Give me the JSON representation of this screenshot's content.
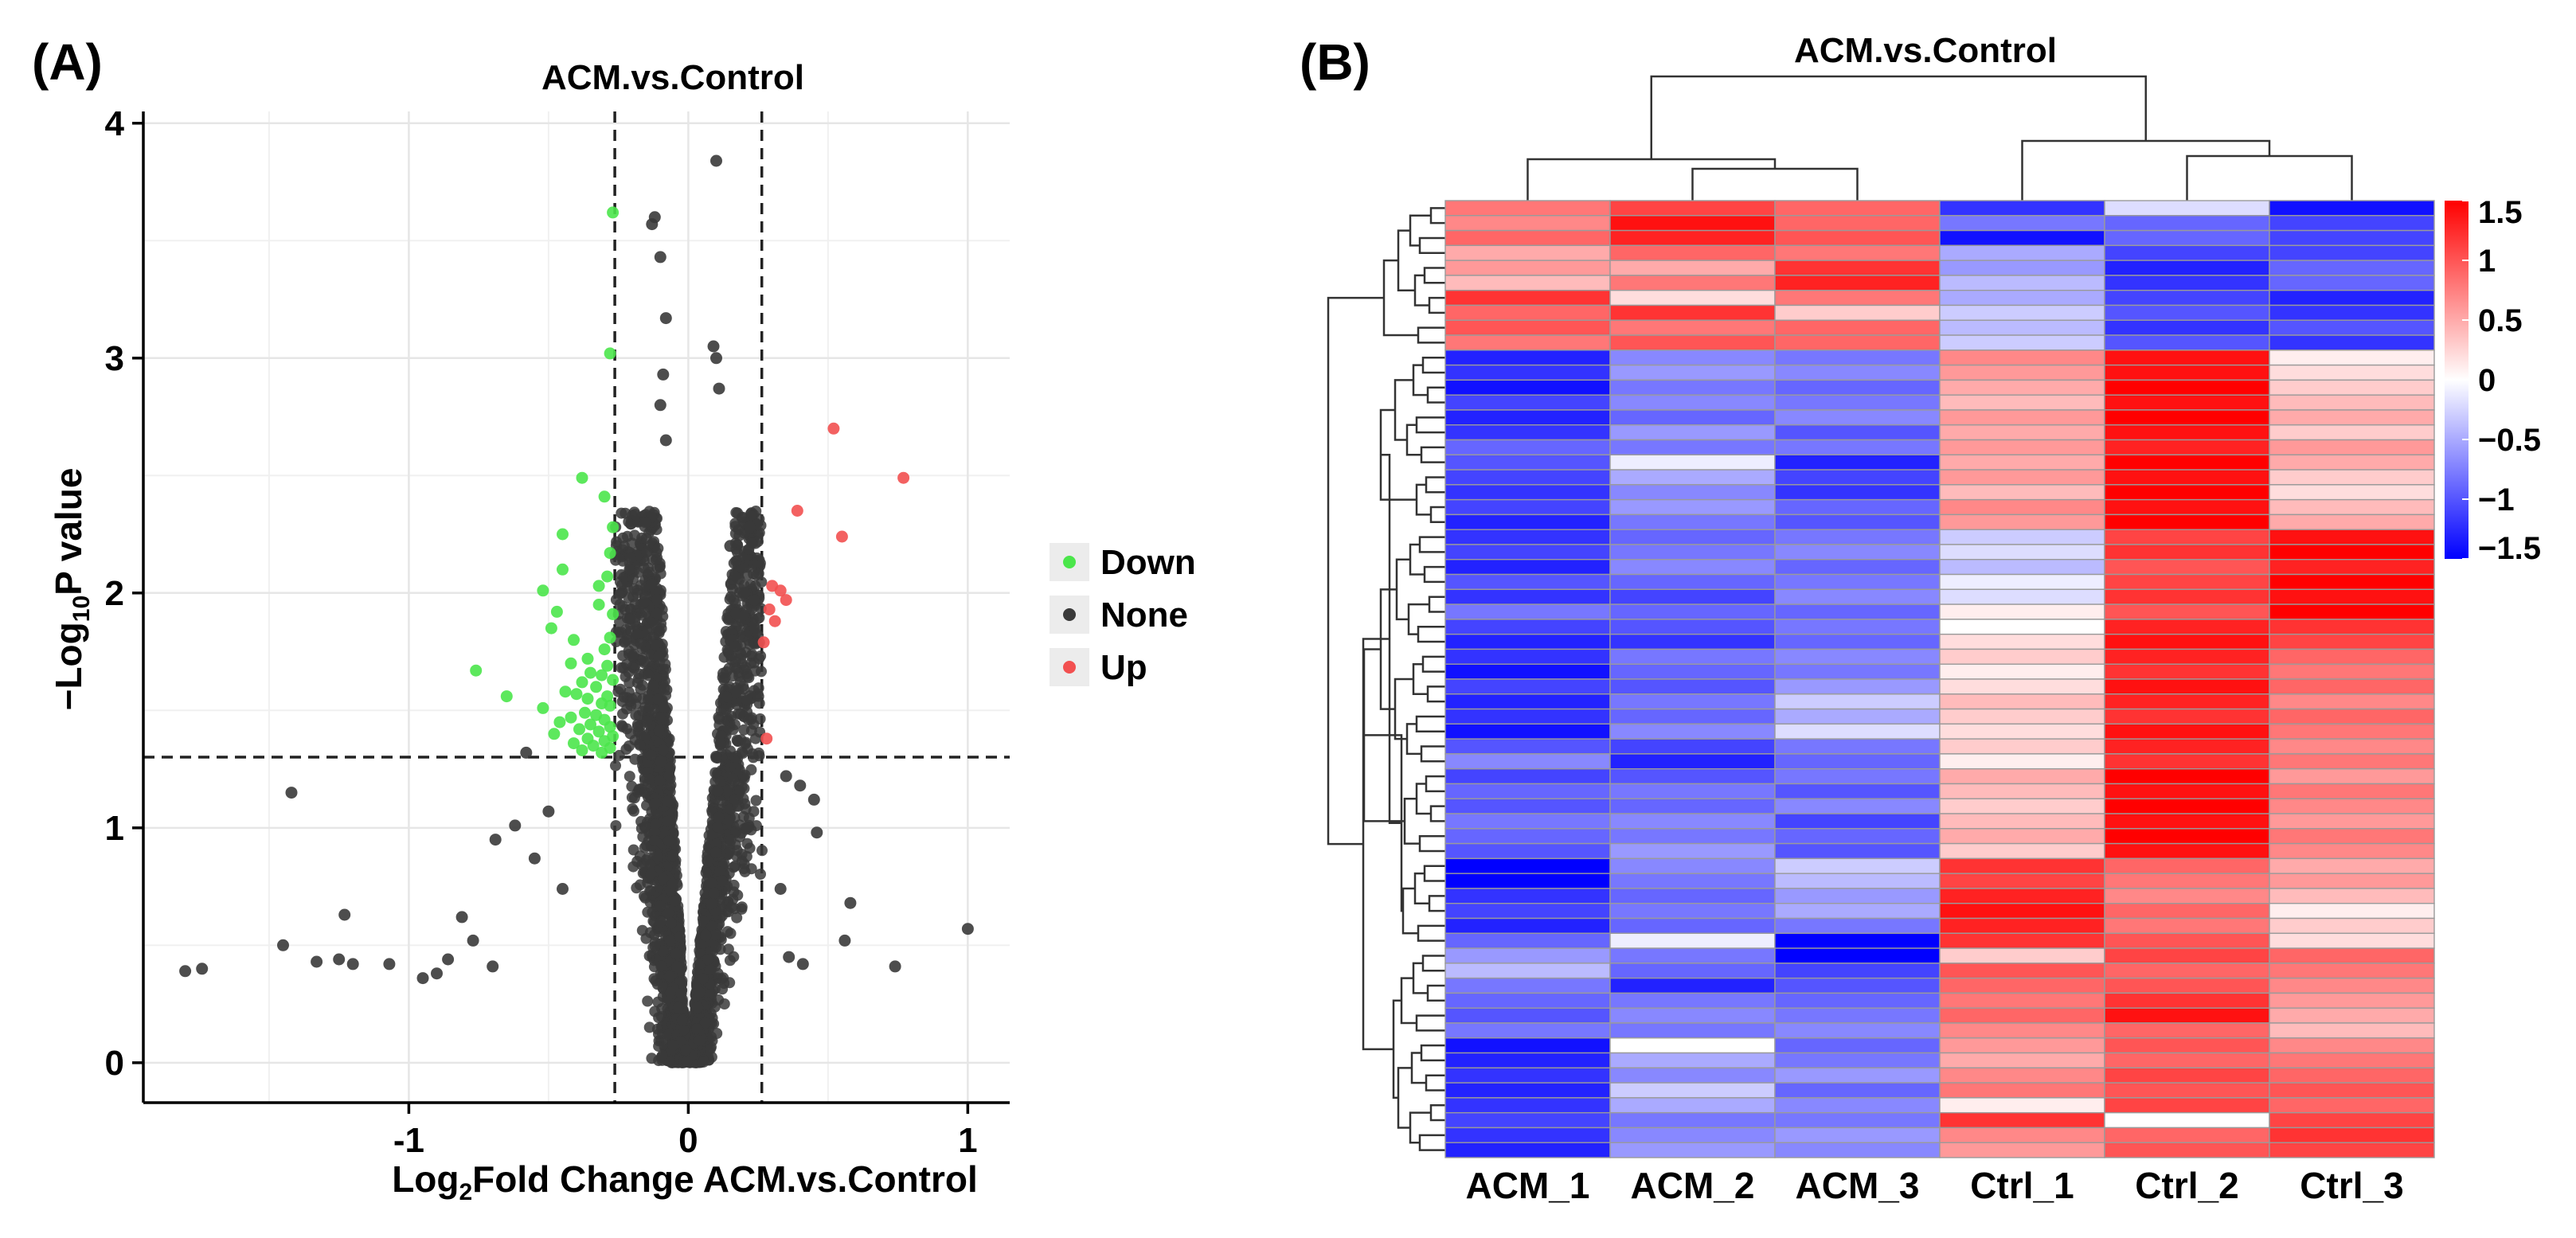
{
  "figure": {
    "panel_a_label": "(A)",
    "panel_b_label": "(B)"
  },
  "chart_data": [
    {
      "type": "scatter",
      "title": "ACM.vs.Control",
      "xlabel_prefix": "Log",
      "xlabel_sub": "2",
      "xlabel_rest": "Fold Change ACM.vs.Control",
      "ylabel_prefix": "−Log",
      "ylabel_sub": "10",
      "ylabel_rest": "P value",
      "xlim": [
        -1.95,
        1.15
      ],
      "ylim": [
        -0.17,
        4.05
      ],
      "xticks": [
        -1,
        0,
        1
      ],
      "xtick_labels": [
        "-1",
        "0",
        "1"
      ],
      "yticks": [
        0,
        1,
        2,
        3,
        4
      ],
      "ytick_labels": [
        "0",
        "1",
        "2",
        "3",
        "4"
      ],
      "threshold_lines": {
        "x": [
          -0.263,
          0.263
        ],
        "y": 1.301
      },
      "grid": true,
      "legend": {
        "position": "right",
        "items": [
          {
            "label": "Down",
            "color": "#4be64b"
          },
          {
            "label": "None",
            "color": "#3a3a3a"
          },
          {
            "label": "Up",
            "color": "#f25050"
          }
        ]
      },
      "series": [
        {
          "name": "Up",
          "color": "#f25050",
          "points": [
            [
              0.52,
              2.7
            ],
            [
              0.77,
              2.49
            ],
            [
              0.39,
              2.35
            ],
            [
              0.55,
              2.24
            ],
            [
              0.3,
              2.03
            ],
            [
              0.33,
              2.01
            ],
            [
              0.35,
              1.97
            ],
            [
              0.29,
              1.93
            ],
            [
              0.31,
              1.88
            ],
            [
              0.27,
              1.79
            ],
            [
              0.28,
              1.38
            ]
          ]
        },
        {
          "name": "Down",
          "color": "#4be64b",
          "points": [
            [
              -0.27,
              3.62
            ],
            [
              -0.28,
              3.02
            ],
            [
              -0.38,
              2.49
            ],
            [
              -0.3,
              2.41
            ],
            [
              -0.27,
              2.28
            ],
            [
              -0.45,
              2.25
            ],
            [
              -0.28,
              2.17
            ],
            [
              -0.45,
              2.1
            ],
            [
              -0.29,
              2.07
            ],
            [
              -0.32,
              2.03
            ],
            [
              -0.52,
              2.01
            ],
            [
              -0.32,
              1.95
            ],
            [
              -0.47,
              1.92
            ],
            [
              -0.27,
              1.91
            ],
            [
              -0.49,
              1.85
            ],
            [
              -0.28,
              1.81
            ],
            [
              -0.41,
              1.8
            ],
            [
              -0.3,
              1.76
            ],
            [
              -0.36,
              1.72
            ],
            [
              -0.42,
              1.7
            ],
            [
              -0.29,
              1.69
            ],
            [
              -0.76,
              1.67
            ],
            [
              -0.35,
              1.66
            ],
            [
              -0.31,
              1.65
            ],
            [
              -0.27,
              1.63
            ],
            [
              -0.38,
              1.62
            ],
            [
              -0.33,
              1.6
            ],
            [
              -0.44,
              1.58
            ],
            [
              -0.4,
              1.57
            ],
            [
              -0.29,
              1.56
            ],
            [
              -0.65,
              1.56
            ],
            [
              -0.36,
              1.55
            ],
            [
              -0.31,
              1.53
            ],
            [
              -0.28,
              1.52
            ],
            [
              -0.52,
              1.51
            ],
            [
              -0.37,
              1.49
            ],
            [
              -0.33,
              1.48
            ],
            [
              -0.42,
              1.47
            ],
            [
              -0.3,
              1.46
            ],
            [
              -0.46,
              1.45
            ],
            [
              -0.35,
              1.44
            ],
            [
              -0.28,
              1.43
            ],
            [
              -0.39,
              1.42
            ],
            [
              -0.32,
              1.41
            ],
            [
              -0.48,
              1.4
            ],
            [
              -0.27,
              1.39
            ],
            [
              -0.36,
              1.38
            ],
            [
              -0.3,
              1.37
            ],
            [
              -0.41,
              1.36
            ],
            [
              -0.34,
              1.35
            ],
            [
              -0.28,
              1.34
            ],
            [
              -0.38,
              1.33
            ],
            [
              -0.31,
              1.32
            ]
          ]
        },
        {
          "name": "None",
          "color": "#3a3a3a",
          "points": [
            [
              0.1,
              3.84
            ],
            [
              -0.12,
              3.6
            ],
            [
              -0.13,
              3.57
            ],
            [
              0.09,
              3.05
            ],
            [
              0.1,
              3.0
            ],
            [
              0.11,
              2.87
            ],
            [
              -0.1,
              3.43
            ],
            [
              -0.08,
              3.17
            ],
            [
              -0.09,
              2.93
            ],
            [
              -0.08,
              2.65
            ],
            [
              -0.1,
              2.8
            ],
            [
              0.2,
              2.3
            ],
            [
              0.22,
              2.28
            ],
            [
              0.15,
              2.2
            ],
            [
              0.2,
              2.0
            ],
            [
              0.24,
              1.85
            ],
            [
              -1.42,
              1.15
            ],
            [
              -1.23,
              0.63
            ],
            [
              -1.45,
              0.5
            ],
            [
              -1.33,
              0.43
            ],
            [
              -1.25,
              0.44
            ],
            [
              -1.74,
              0.4
            ],
            [
              -1.8,
              0.39
            ],
            [
              -1.2,
              0.42
            ],
            [
              -1.07,
              0.42
            ],
            [
              -0.95,
              0.36
            ],
            [
              -0.9,
              0.38
            ],
            [
              -0.86,
              0.44
            ],
            [
              -0.81,
              0.62
            ],
            [
              -0.77,
              0.52
            ],
            [
              -0.69,
              0.95
            ],
            [
              -0.7,
              0.41
            ],
            [
              -0.62,
              1.01
            ],
            [
              -0.58,
              1.32
            ],
            [
              -0.55,
              0.87
            ],
            [
              -0.5,
              1.07
            ],
            [
              -0.45,
              0.74
            ],
            [
              0.4,
              1.18
            ],
            [
              0.45,
              1.12
            ],
            [
              0.46,
              0.98
            ],
            [
              0.56,
              0.52
            ],
            [
              0.58,
              0.68
            ],
            [
              0.41,
              0.42
            ],
            [
              0.74,
              0.41
            ],
            [
              1.0,
              0.57
            ],
            [
              0.35,
              1.22
            ],
            [
              0.33,
              0.74
            ],
            [
              0.36,
              0.45
            ]
          ]
        }
      ],
      "none_cloud": {
        "count": 2800,
        "description_free": true
      }
    },
    {
      "type": "heatmap",
      "title": "ACM.vs.Control",
      "columns": [
        "ACM_1",
        "ACM_2",
        "ACM_3",
        "Ctrl_1",
        "Ctrl_2",
        "Ctrl_3"
      ],
      "color_scale": {
        "min": -1.5,
        "max": 1.5,
        "low": "#0000ff",
        "mid": "#ffffff",
        "high": "#ff0000"
      },
      "colorbar_ticks": [
        1.5,
        1,
        0.5,
        0,
        -0.5,
        -1,
        -1.5
      ],
      "colorbar_labels": [
        "1.5",
        "1",
        "0.5",
        "0",
        "−0.5",
        "−1",
        "−1.5"
      ],
      "values": [
        [
          0.8,
          1.1,
          0.9,
          -1.2,
          -0.2,
          -1.4
        ],
        [
          0.7,
          1.4,
          0.9,
          -0.8,
          -0.9,
          -1.1
        ],
        [
          0.9,
          1.3,
          1.0,
          -1.4,
          -0.9,
          -1.1
        ],
        [
          0.5,
          0.9,
          0.8,
          -0.5,
          -1.1,
          -1.1
        ],
        [
          0.6,
          0.5,
          1.2,
          -0.6,
          -1.3,
          -0.9
        ],
        [
          0.4,
          0.8,
          1.3,
          -0.4,
          -1.2,
          -0.9
        ],
        [
          1.2,
          0.2,
          0.8,
          -0.5,
          -1.1,
          -1.3
        ],
        [
          0.9,
          1.2,
          0.3,
          -0.3,
          -1.0,
          -1.2
        ],
        [
          1.0,
          0.8,
          0.9,
          -0.4,
          -1.2,
          -1.0
        ],
        [
          0.8,
          1.0,
          0.9,
          -0.3,
          -1.0,
          -1.2
        ],
        [
          -1.3,
          -0.7,
          -0.8,
          0.7,
          1.4,
          0.1
        ],
        [
          -1.2,
          -0.6,
          -0.7,
          0.6,
          1.4,
          0.2
        ],
        [
          -1.4,
          -0.8,
          -0.9,
          0.5,
          1.5,
          0.3
        ],
        [
          -1.1,
          -0.7,
          -0.8,
          0.4,
          1.4,
          0.4
        ],
        [
          -1.3,
          -0.9,
          -0.7,
          0.6,
          1.5,
          0.5
        ],
        [
          -1.2,
          -0.6,
          -1.0,
          0.5,
          1.4,
          0.3
        ],
        [
          -0.9,
          -0.8,
          -0.8,
          0.6,
          1.3,
          0.6
        ],
        [
          -1.0,
          -0.1,
          -1.3,
          0.5,
          1.5,
          0.5
        ],
        [
          -1.1,
          -0.5,
          -1.1,
          0.6,
          1.4,
          0.3
        ],
        [
          -1.2,
          -0.7,
          -1.2,
          0.4,
          1.5,
          0.2
        ],
        [
          -1.1,
          -0.6,
          -0.9,
          0.7,
          1.4,
          0.4
        ],
        [
          -1.3,
          -0.8,
          -1.0,
          0.6,
          1.5,
          0.5
        ],
        [
          -1.2,
          -0.9,
          -0.8,
          -0.3,
          1.1,
          1.4
        ],
        [
          -1.1,
          -0.8,
          -0.7,
          -0.2,
          1.2,
          1.5
        ],
        [
          -1.3,
          -0.7,
          -0.9,
          -0.4,
          1.0,
          1.3
        ],
        [
          -1.0,
          -0.9,
          -0.8,
          -0.1,
          1.1,
          1.5
        ],
        [
          -1.2,
          -1.1,
          -0.7,
          -0.2,
          1.2,
          1.4
        ],
        [
          -0.8,
          -0.9,
          -0.9,
          0.1,
          1.0,
          1.5
        ],
        [
          -1.1,
          -1.0,
          -0.8,
          0.0,
          1.3,
          1.2
        ],
        [
          -1.3,
          -1.2,
          -0.9,
          0.2,
          1.4,
          1.1
        ],
        [
          -1.2,
          -0.8,
          -0.7,
          0.3,
          1.3,
          0.9
        ],
        [
          -1.4,
          -0.9,
          -0.8,
          0.1,
          1.2,
          0.8
        ],
        [
          -1.1,
          -1.0,
          -0.6,
          0.2,
          1.4,
          0.9
        ],
        [
          -1.3,
          -0.8,
          -0.3,
          0.4,
          1.3,
          0.7
        ],
        [
          -1.2,
          -0.9,
          -0.5,
          0.3,
          1.2,
          0.9
        ],
        [
          -1.4,
          -0.7,
          -0.2,
          0.2,
          1.4,
          0.8
        ],
        [
          -1.0,
          -1.1,
          -0.8,
          0.3,
          1.3,
          0.7
        ],
        [
          -0.7,
          -1.3,
          -0.9,
          0.1,
          1.2,
          0.8
        ],
        [
          -1.1,
          -1.0,
          -0.8,
          0.5,
          1.5,
          0.6
        ],
        [
          -0.9,
          -0.8,
          -1.0,
          0.4,
          1.4,
          0.8
        ],
        [
          -1.0,
          -0.9,
          -0.7,
          0.3,
          1.5,
          0.7
        ],
        [
          -0.8,
          -0.7,
          -1.1,
          0.4,
          1.4,
          0.6
        ],
        [
          -0.9,
          -0.8,
          -0.9,
          0.5,
          1.5,
          0.8
        ],
        [
          -1.0,
          -0.6,
          -1.0,
          0.3,
          1.4,
          0.7
        ],
        [
          -1.5,
          -0.7,
          -0.3,
          1.2,
          0.9,
          0.5
        ],
        [
          -1.5,
          -0.8,
          -0.4,
          1.1,
          0.8,
          0.6
        ],
        [
          -1.2,
          -0.9,
          -0.6,
          1.3,
          0.7,
          0.4
        ],
        [
          -1.1,
          -0.8,
          -0.5,
          1.4,
          0.9,
          0.1
        ],
        [
          -1.3,
          -0.9,
          -0.8,
          1.3,
          0.8,
          0.3
        ],
        [
          -0.9,
          -0.1,
          -1.5,
          1.2,
          1.0,
          0.2
        ],
        [
          -0.6,
          -0.8,
          -1.5,
          0.3,
          1.1,
          0.9
        ],
        [
          -0.4,
          -0.9,
          -1.1,
          1.0,
          0.9,
          0.8
        ],
        [
          -0.8,
          -1.3,
          -1.0,
          0.9,
          1.0,
          0.7
        ],
        [
          -0.9,
          -0.8,
          -0.9,
          0.8,
          1.2,
          0.6
        ],
        [
          -1.0,
          -0.7,
          -0.8,
          0.9,
          1.4,
          0.5
        ],
        [
          -0.8,
          -0.8,
          -0.7,
          0.7,
          0.9,
          0.4
        ],
        [
          -1.4,
          0.0,
          -0.9,
          0.6,
          1.0,
          0.7
        ],
        [
          -1.3,
          -0.5,
          -0.8,
          0.5,
          0.9,
          0.8
        ],
        [
          -1.2,
          -0.7,
          -0.6,
          0.7,
          1.1,
          0.9
        ],
        [
          -1.3,
          -0.3,
          -0.9,
          0.8,
          1.0,
          1.0
        ],
        [
          -1.2,
          -0.5,
          -0.7,
          0.1,
          1.1,
          0.9
        ],
        [
          -1.1,
          -0.8,
          -0.8,
          1.2,
          0.0,
          1.1
        ],
        [
          -1.2,
          -0.7,
          -0.6,
          0.7,
          0.9,
          1.2
        ],
        [
          -1.3,
          -0.6,
          -0.7,
          0.6,
          1.0,
          1.1
        ]
      ]
    }
  ]
}
